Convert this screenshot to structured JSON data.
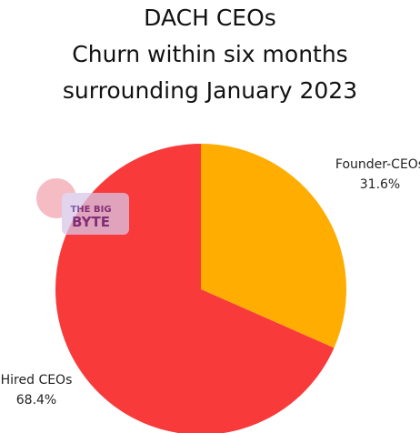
{
  "chart_data": {
    "type": "pie",
    "title": [
      "DACH CEOs",
      "Churn within six months",
      "surrounding January 2023"
    ],
    "categories": [
      "Founder-CEOs",
      "Hired CEOs"
    ],
    "values": [
      31.6,
      68.4
    ],
    "value_labels": [
      "31.6%",
      "68.4%"
    ],
    "colors": [
      "#ffad00",
      "#f83a3a"
    ]
  },
  "logo": {
    "line1": "THE BIG",
    "line2": "BYTE"
  }
}
